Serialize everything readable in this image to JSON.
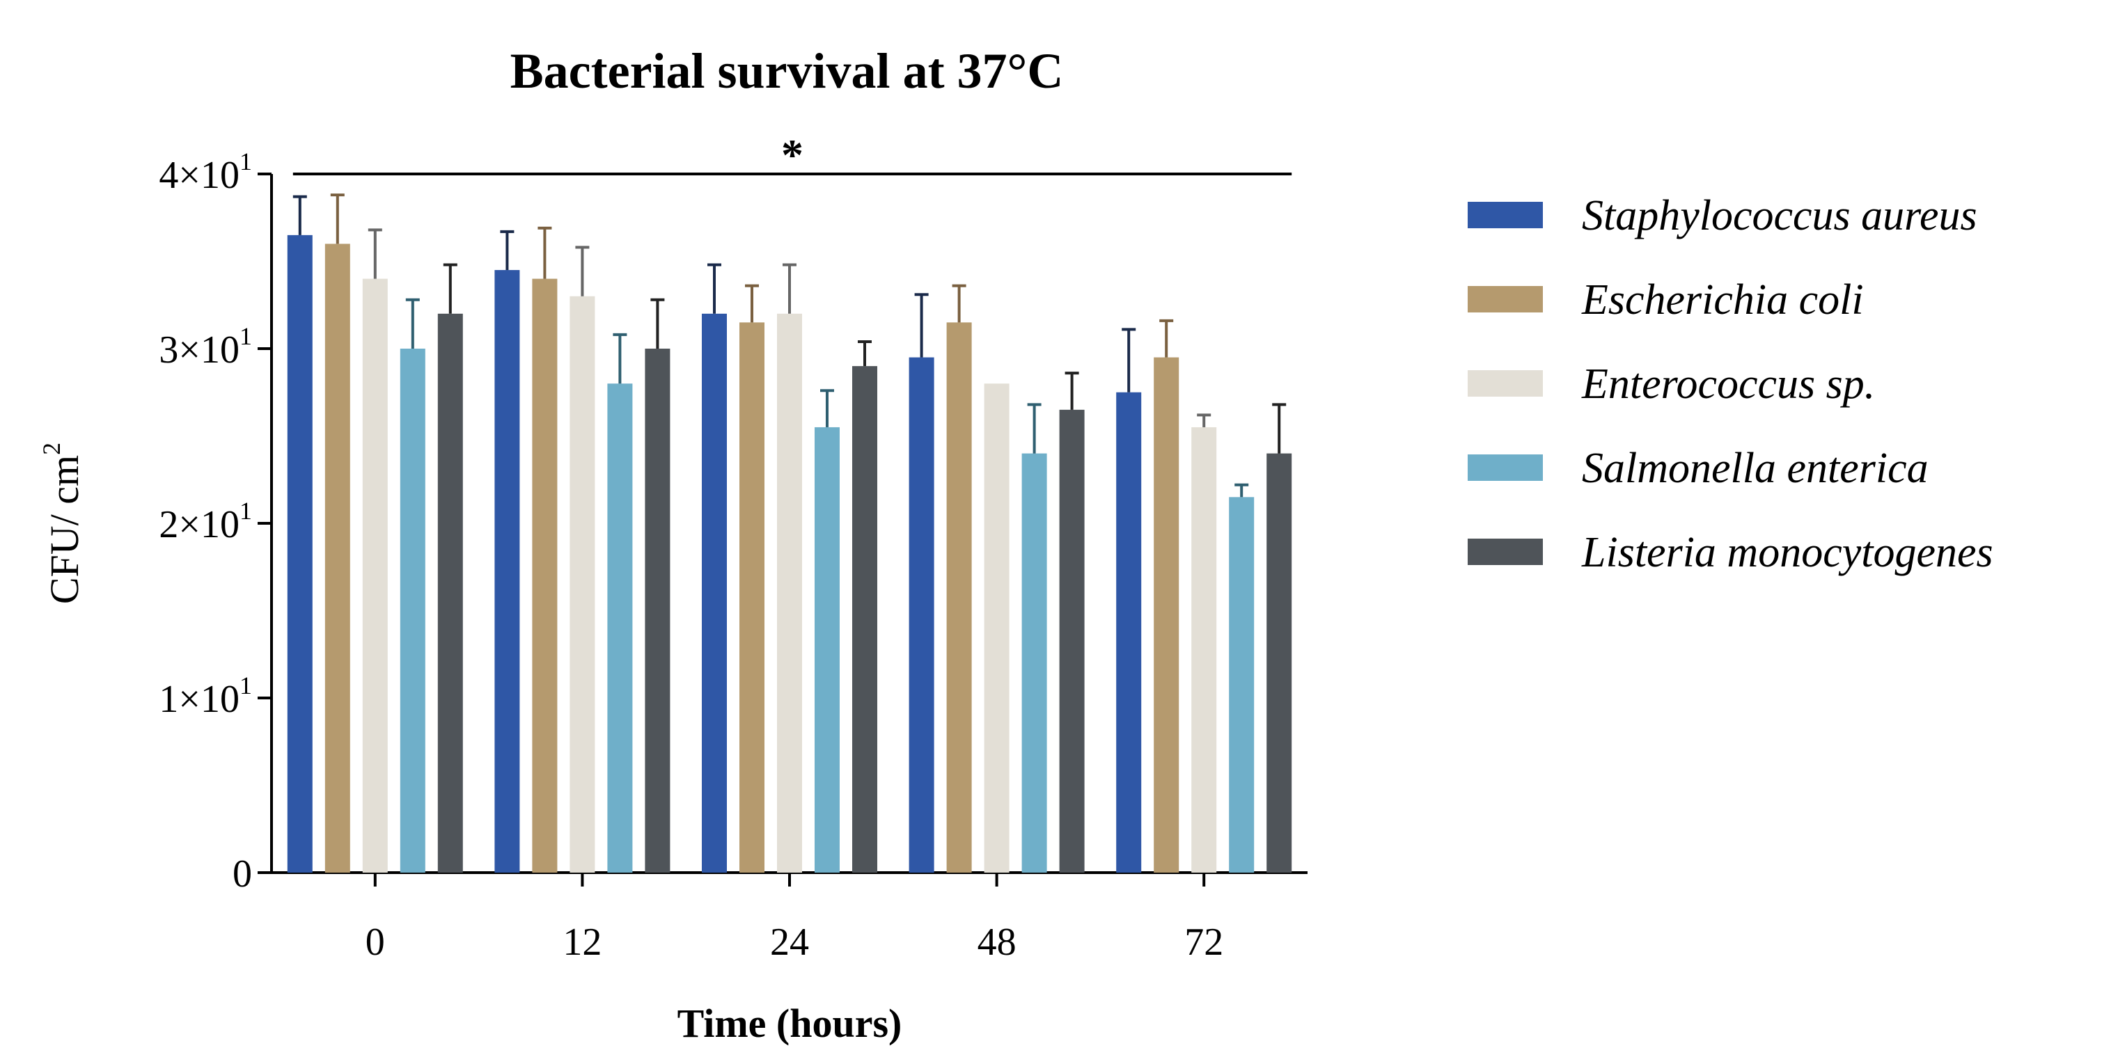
{
  "chart_data": {
    "type": "bar",
    "title": "Bacterial survival at 37°C",
    "xlabel": "Time (hours)",
    "ylabel": {
      "base": "CFU/ cm",
      "sup": "2"
    },
    "categories": [
      "0",
      "12",
      "24",
      "48",
      "72"
    ],
    "ylim": [
      0,
      40
    ],
    "yticks": [
      {
        "value": 0,
        "label": "0",
        "sup": ""
      },
      {
        "value": 10,
        "label": "1×10",
        "sup": "1"
      },
      {
        "value": 20,
        "label": "2×10",
        "sup": "1"
      },
      {
        "value": 30,
        "label": "3×10",
        "sup": "1"
      },
      {
        "value": 40,
        "label": "4×10",
        "sup": "1"
      }
    ],
    "significance": {
      "label": "*",
      "from_category": "0",
      "to_category": "72",
      "y_value": 40
    },
    "series": [
      {
        "name": "Staphylococcus aureus",
        "color": "#2f57a6",
        "error_color": "#1a2a4a",
        "values": [
          36.5,
          34.5,
          32.0,
          29.5,
          27.5
        ],
        "errors": [
          2.2,
          2.2,
          2.8,
          3.6,
          3.6
        ]
      },
      {
        "name": "Escherichia coli",
        "color": "#b59a6e",
        "error_color": "#7a6040",
        "values": [
          36.0,
          34.0,
          31.5,
          31.5,
          29.5
        ],
        "errors": [
          2.8,
          2.9,
          2.1,
          2.1,
          2.1
        ]
      },
      {
        "name": "Enterococcus sp.",
        "color": "#e3dfd6",
        "error_color": "#666666",
        "values": [
          34.0,
          33.0,
          32.0,
          28.0,
          25.5
        ],
        "errors": [
          2.8,
          2.8,
          2.8,
          0.0,
          0.7
        ]
      },
      {
        "name": "Salmonella enterica",
        "color": "#6fafc9",
        "error_color": "#2f5f70",
        "values": [
          30.0,
          28.0,
          25.5,
          24.0,
          21.5
        ],
        "errors": [
          2.8,
          2.8,
          2.1,
          2.8,
          0.7
        ]
      },
      {
        "name": "Listeria monocytogenes",
        "color": "#4f5459",
        "error_color": "#222222",
        "values": [
          32.0,
          30.0,
          29.0,
          26.5,
          24.0
        ],
        "errors": [
          2.8,
          2.8,
          1.4,
          2.1,
          2.8
        ]
      }
    ],
    "legend_position": "right"
  }
}
